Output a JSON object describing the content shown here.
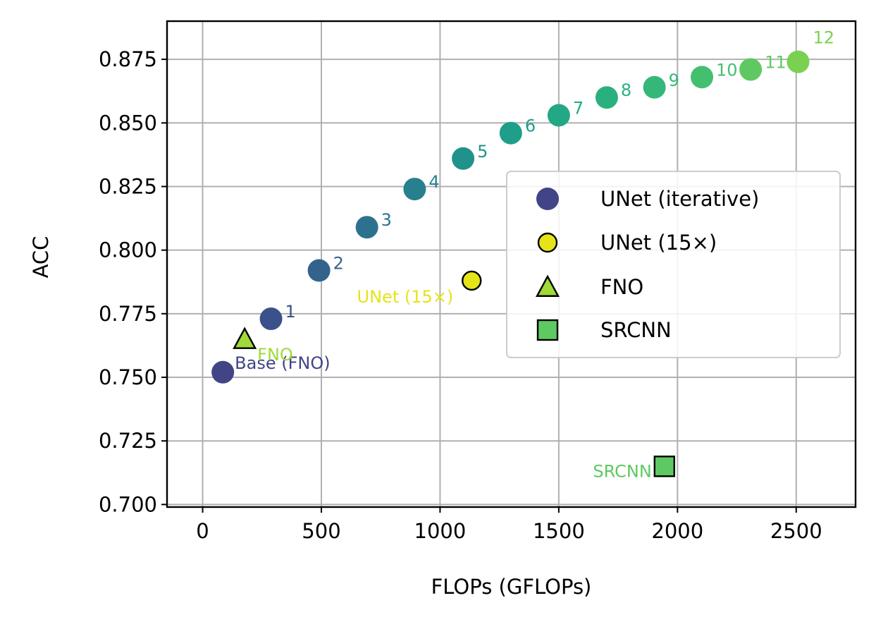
{
  "chart_data": {
    "type": "scatter",
    "xlabel": "FLOPs (GFLOPs)",
    "ylabel": "ACC",
    "xlim": [
      -150,
      2750
    ],
    "ylim": [
      0.699,
      0.89
    ],
    "xticks": [
      0,
      500,
      1000,
      1500,
      2000,
      2500
    ],
    "xtick_labels": [
      "0",
      "500",
      "1000",
      "1500",
      "2000",
      "2500"
    ],
    "yticks": [
      0.7,
      0.725,
      0.75,
      0.775,
      0.8,
      0.825,
      0.85,
      0.875
    ],
    "ytick_labels": [
      "0.700",
      "0.725",
      "0.750",
      "0.775",
      "0.800",
      "0.825",
      "0.850",
      "0.875"
    ],
    "grid": true,
    "legend_position": "center-right",
    "series": [
      {
        "name": "UNet (iterative)",
        "marker": "circle",
        "legend_color": "#414487",
        "points": [
          {
            "x": 85,
            "y": 0.752,
            "label": "Base (FNO)",
            "color": "#414487"
          },
          {
            "x": 288,
            "y": 0.773,
            "label": "1",
            "color": "#3b518b"
          },
          {
            "x": 490,
            "y": 0.792,
            "label": "2",
            "color": "#33638d"
          },
          {
            "x": 692,
            "y": 0.809,
            "label": "3",
            "color": "#2c728e"
          },
          {
            "x": 893,
            "y": 0.824,
            "label": "4",
            "color": "#27808e"
          },
          {
            "x": 1097,
            "y": 0.836,
            "label": "5",
            "color": "#21918c"
          },
          {
            "x": 1298,
            "y": 0.846,
            "label": "6",
            "color": "#1f9e89"
          },
          {
            "x": 1500,
            "y": 0.853,
            "label": "7",
            "color": "#22a884"
          },
          {
            "x": 1702,
            "y": 0.86,
            "label": "8",
            "color": "#2ab07f"
          },
          {
            "x": 1903,
            "y": 0.864,
            "label": "9",
            "color": "#35b779"
          },
          {
            "x": 2103,
            "y": 0.868,
            "label": "10",
            "color": "#44bf70"
          },
          {
            "x": 2308,
            "y": 0.871,
            "label": "11",
            "color": "#5ec962"
          },
          {
            "x": 2508,
            "y": 0.874,
            "label": "12",
            "color": "#7ad151"
          }
        ]
      },
      {
        "name": "UNet (15×)",
        "marker": "circle-outlined",
        "legend_color": "#e5e419",
        "points": [
          {
            "x": 1133,
            "y": 0.788,
            "label": "UNet (15×)",
            "color": "#e5e419"
          }
        ]
      },
      {
        "name": "FNO",
        "marker": "triangle",
        "legend_color": "#a0da39",
        "points": [
          {
            "x": 177,
            "y": 0.765,
            "label": "FNO",
            "color": "#a0da39"
          }
        ]
      },
      {
        "name": "SRCNN",
        "marker": "square",
        "legend_color": "#5ec962",
        "points": [
          {
            "x": 1945,
            "y": 0.715,
            "label": "SRCNN",
            "color": "#5ec962"
          }
        ]
      }
    ]
  }
}
